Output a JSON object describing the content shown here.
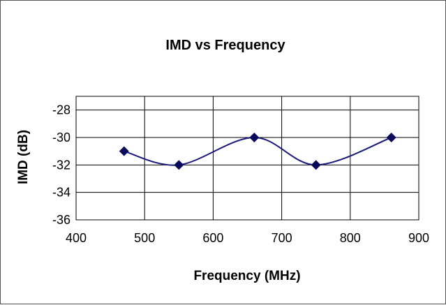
{
  "chart_data": {
    "type": "line",
    "title": "IMD vs Frequency",
    "xlabel": "Frequency (MHz)",
    "ylabel": "IMD (dB)",
    "xlim": [
      400,
      900
    ],
    "ylim": [
      -36,
      -27
    ],
    "x_ticks": [
      400,
      500,
      600,
      700,
      800,
      900
    ],
    "y_ticks": [
      -36,
      -34,
      -32,
      -30,
      -28
    ],
    "grid": true,
    "legend": "none",
    "line_style": "smooth",
    "marker": "diamond",
    "colors": {
      "series": "#1a1a7a",
      "marker": "#0a0a5a",
      "grid": "#000000"
    },
    "series": [
      {
        "x": [
          470,
          550,
          660,
          750,
          860
        ],
        "y": [
          -31,
          -32,
          -30,
          -32,
          -30
        ]
      }
    ]
  }
}
